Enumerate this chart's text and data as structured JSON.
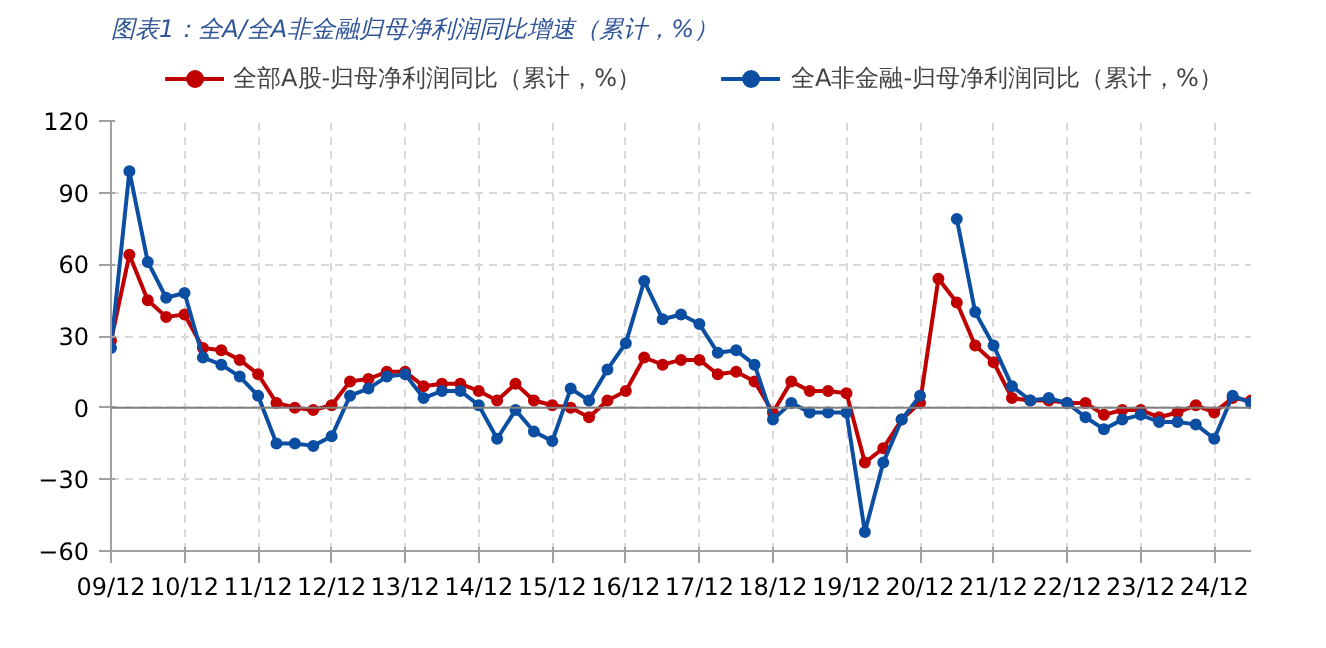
{
  "chart_data": {
    "type": "line",
    "title": "图表1：全A/全A非金融归母净利润同比增速（累计，%）",
    "x": [
      "2009-12",
      "2010-03",
      "2010-06",
      "2010-09",
      "2010-12",
      "2011-03",
      "2011-06",
      "2011-09",
      "2011-12",
      "2012-03",
      "2012-06",
      "2012-09",
      "2012-12",
      "2013-03",
      "2013-06",
      "2013-09",
      "2013-12",
      "2014-03",
      "2014-06",
      "2014-09",
      "2014-12",
      "2015-03",
      "2015-06",
      "2015-09",
      "2015-12",
      "2016-03",
      "2016-06",
      "2016-09",
      "2016-12",
      "2017-03",
      "2017-06",
      "2017-09",
      "2017-12",
      "2018-03",
      "2018-06",
      "2018-09",
      "2018-12",
      "2019-03",
      "2019-06",
      "2019-09",
      "2019-12",
      "2020-03",
      "2020-06",
      "2020-09",
      "2020-12",
      "2021-03",
      "2021-06",
      "2021-09",
      "2021-12",
      "2022-03",
      "2022-06",
      "2022-09",
      "2022-12",
      "2023-03",
      "2023-06",
      "2023-09",
      "2023-12",
      "2024-03",
      "2024-06",
      "2024-09",
      "2024-12",
      "2025-03",
      "2025-06"
    ],
    "series": [
      {
        "name": "全部A股-归母净利润同比（累计，%）",
        "color": "#c00000",
        "values": [
          28,
          64,
          45,
          38,
          39,
          25,
          24,
          20,
          14,
          2,
          0,
          -1,
          1,
          11,
          12,
          15,
          15,
          9,
          10,
          10,
          7,
          3,
          10,
          3,
          1,
          0,
          -4,
          3,
          7,
          21,
          18,
          20,
          20,
          14,
          15,
          11,
          -2,
          11,
          7,
          7,
          6,
          -23,
          -17,
          -5,
          2,
          54,
          44,
          26,
          19,
          4,
          3,
          3,
          2,
          2,
          -3,
          -1,
          -1,
          -4,
          -2,
          1,
          -2,
          4,
          3
        ]
      },
      {
        "name": "全A非金融-归母净利润同比（累计，%）",
        "color": "#0b4ea2",
        "values": [
          25,
          99,
          61,
          46,
          48,
          21,
          18,
          13,
          5,
          -15,
          -15,
          -16,
          -12,
          5,
          8,
          13,
          14,
          4,
          7,
          7,
          1,
          -13,
          -1,
          -10,
          -14,
          8,
          3,
          16,
          27,
          53,
          37,
          39,
          35,
          23,
          24,
          18,
          -5,
          2,
          -2,
          -2,
          -2,
          -52,
          -23,
          -5,
          5,
          null,
          79,
          40,
          26,
          9,
          3,
          4,
          2,
          -4,
          -9,
          -5,
          -3,
          -6,
          -6,
          -7,
          -13,
          5,
          2
        ]
      }
    ],
    "xlim": [
      "2009-12",
      "2025-06"
    ],
    "xticks": [
      {
        "value": "2009-12",
        "label": "09/12"
      },
      {
        "value": "2010-12",
        "label": "10/12"
      },
      {
        "value": "2011-12",
        "label": "11/12"
      },
      {
        "value": "2012-12",
        "label": "12/12"
      },
      {
        "value": "2013-12",
        "label": "13/12"
      },
      {
        "value": "2014-12",
        "label": "14/12"
      },
      {
        "value": "2015-12",
        "label": "15/12"
      },
      {
        "value": "2016-12",
        "label": "16/12"
      },
      {
        "value": "2017-12",
        "label": "17/12"
      },
      {
        "value": "2018-12",
        "label": "18/12"
      },
      {
        "value": "2019-12",
        "label": "19/12"
      },
      {
        "value": "2020-12",
        "label": "20/12"
      },
      {
        "value": "2021-12",
        "label": "21/12"
      },
      {
        "value": "2022-12",
        "label": "22/12"
      },
      {
        "value": "2023-12",
        "label": "23/12"
      },
      {
        "value": "2024-12",
        "label": "24/12"
      }
    ],
    "ylim": [
      -60,
      120
    ],
    "yticks": [
      -60,
      -30,
      0,
      30,
      60,
      90,
      120
    ],
    "ref_lines": [
      {
        "axis": "y",
        "value": 0,
        "color": "#808080",
        "line_style": "solid"
      }
    ],
    "grid": true,
    "legend": "top",
    "marker": "circle",
    "line_style": "solid"
  }
}
